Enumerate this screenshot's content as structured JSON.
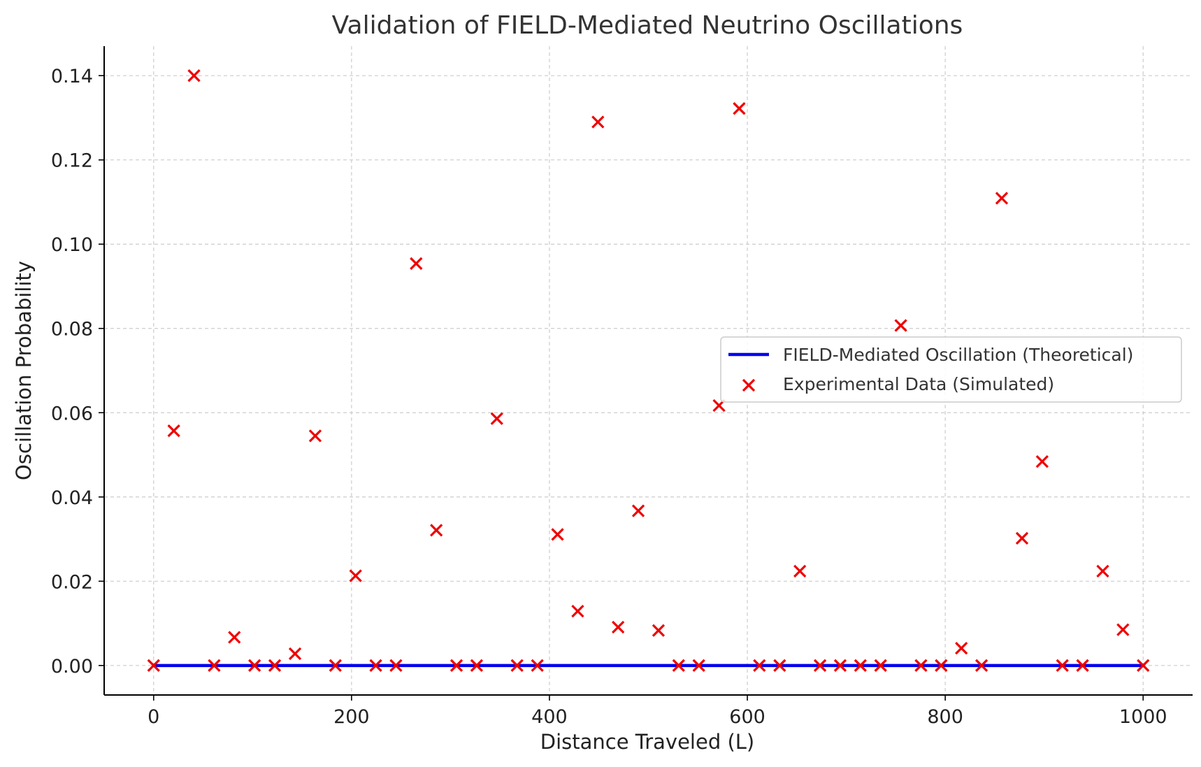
{
  "chart_data": {
    "type": "scatter",
    "title": "Validation of FIELD-Mediated Neutrino Oscillations",
    "xlabel": "Distance Traveled (L)",
    "ylabel": "Oscillation Probability",
    "xlim": [
      -50,
      1050
    ],
    "ylim": [
      -0.007,
      0.147
    ],
    "xticks": [
      0,
      200,
      400,
      600,
      800,
      1000
    ],
    "xtick_labels": [
      "0",
      "200",
      "400",
      "600",
      "800",
      "1000"
    ],
    "yticks": [
      0,
      0.02,
      0.04,
      0.06,
      0.08,
      0.1,
      0.12,
      0.14
    ],
    "ytick_labels": [
      "0.00",
      "0.02",
      "0.04",
      "0.06",
      "0.08",
      "0.10",
      "0.12",
      "0.14"
    ],
    "grid": true,
    "legend_position": "center-right",
    "series": [
      {
        "name": "FIELD-Mediated Oscillation (Theoretical)",
        "kind": "line",
        "color": "#0000ee",
        "x": [
          0,
          1000
        ],
        "y": [
          0,
          0
        ]
      },
      {
        "name": "Experimental Data (Simulated)",
        "kind": "scatter",
        "marker": "x",
        "color": "#ee0000",
        "x": [
          0,
          20.4,
          40.8,
          61.2,
          81.6,
          102.0,
          122.4,
          142.9,
          163.3,
          183.7,
          204.1,
          224.5,
          244.9,
          265.3,
          285.7,
          306.1,
          326.5,
          346.9,
          367.3,
          387.8,
          408.2,
          428.6,
          449.0,
          469.4,
          489.8,
          510.2,
          530.6,
          551.0,
          571.4,
          591.8,
          612.2,
          632.7,
          653.1,
          673.5,
          693.9,
          714.3,
          734.7,
          755.1,
          775.5,
          795.9,
          816.3,
          836.7,
          857.1,
          877.6,
          898.0,
          918.4,
          938.8,
          959.2,
          979.6,
          1000
        ],
        "y": [
          0,
          0.0557,
          0.14,
          0,
          0.0067,
          0,
          0,
          0.0028,
          0.0545,
          0,
          0.0213,
          0,
          0,
          0.0954,
          0.0321,
          0,
          0,
          0.0586,
          0,
          0,
          0.0311,
          0.0129,
          0.129,
          0.0091,
          0.0367,
          0.0083,
          0,
          0,
          0.0617,
          0.1322,
          0,
          0,
          0.0224,
          0,
          0,
          0,
          0,
          0.0807,
          0,
          0,
          0.0041,
          0,
          0.1109,
          0.0302,
          0.0484,
          0,
          0,
          0.0224,
          0.0085,
          0
        ]
      }
    ]
  }
}
